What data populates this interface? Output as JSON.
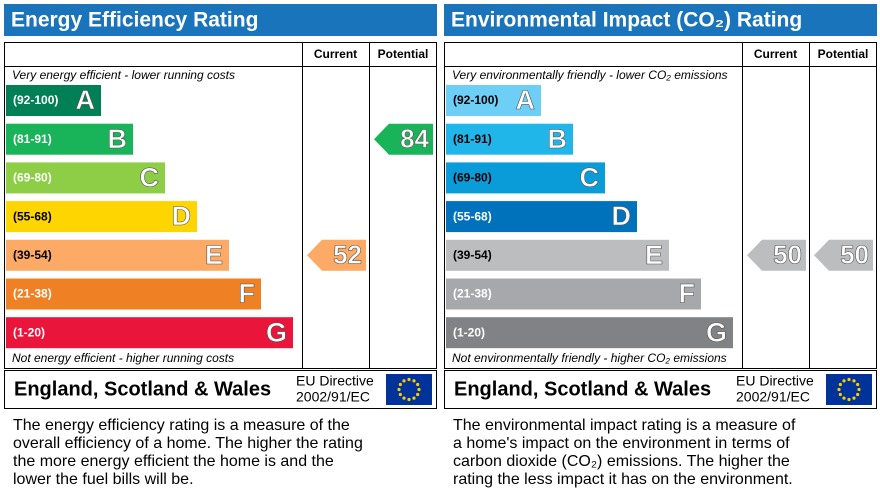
{
  "panels": [
    {
      "title": "Energy Efficiency Rating",
      "header_current": "Current",
      "header_potential": "Potential",
      "top_note": "Very energy efficient - lower running costs",
      "bottom_note": "Not energy efficient - higher running costs",
      "bands": [
        {
          "range": "(92-100)",
          "letter": "A",
          "color": "#008054"
        },
        {
          "range": "(81-91)",
          "letter": "B",
          "color": "#19b459"
        },
        {
          "range": "(69-80)",
          "letter": "C",
          "color": "#8dce46"
        },
        {
          "range": "(55-68)",
          "letter": "D",
          "color": "#ffd500"
        },
        {
          "range": "(39-54)",
          "letter": "E",
          "color": "#fcaa65"
        },
        {
          "range": "(21-38)",
          "letter": "F",
          "color": "#ef8023"
        },
        {
          "range": "(1-20)",
          "letter": "G",
          "color": "#e9153b"
        }
      ],
      "current": 52,
      "potential": 84,
      "footer": "England, Scotland & Wales",
      "directive": [
        "EU Directive",
        "2002/91/EC"
      ],
      "description": [
        "The energy efficiency rating is a measure of the",
        "overall efficiency of a home. The higher the rating",
        "the more energy efficient the home is and the",
        "lower the fuel bills will be."
      ]
    },
    {
      "title": "Environmental Impact (CO₂) Rating",
      "header_current": "Current",
      "header_potential": "Potential",
      "top_note": "Very environmentally friendly - lower CO₂ emissions",
      "bottom_note": "Not environmentally friendly - higher CO₂ emissions",
      "bands": [
        {
          "range": "(92-100)",
          "letter": "A",
          "color": "#6ecff6"
        },
        {
          "range": "(81-91)",
          "letter": "B",
          "color": "#21b6ea"
        },
        {
          "range": "(69-80)",
          "letter": "C",
          "color": "#0a9cd8"
        },
        {
          "range": "(55-68)",
          "letter": "D",
          "color": "#0072bc"
        },
        {
          "range": "(39-54)",
          "letter": "E",
          "color": "#bbbdbf"
        },
        {
          "range": "(21-38)",
          "letter": "F",
          "color": "#a6a8ab"
        },
        {
          "range": "(1-20)",
          "letter": "G",
          "color": "#808285"
        }
      ],
      "current": 50,
      "potential": 50,
      "footer": "England, Scotland & Wales",
      "directive": [
        "EU Directive",
        "2002/91/EC"
      ],
      "description": [
        "The environmental impact rating is a measure of",
        "a home's impact on the environment in terms of",
        "carbon dioxide (CO₂) emissions. The higher the",
        "rating the less impact it has on the environment."
      ]
    }
  ]
}
